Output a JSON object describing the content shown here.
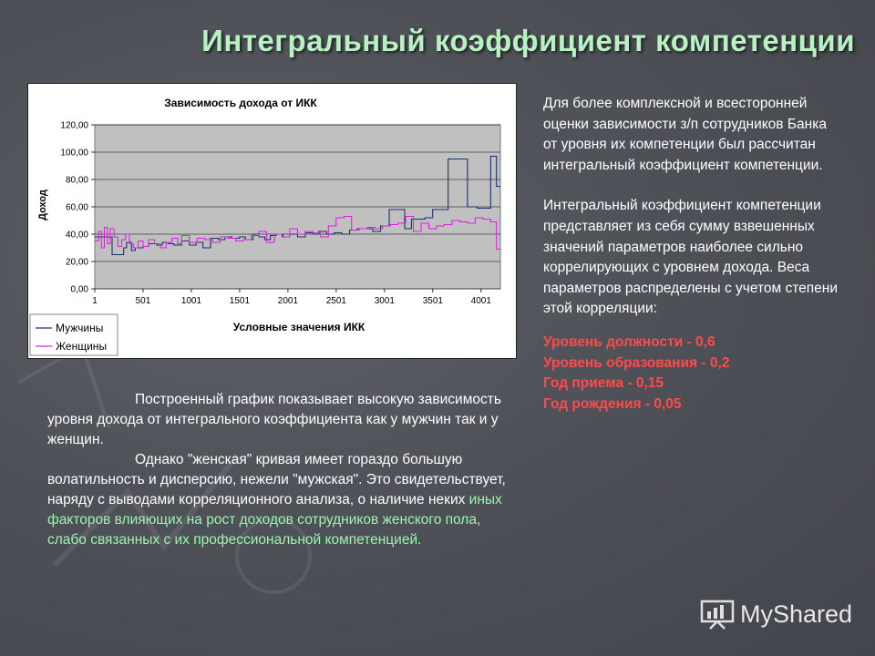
{
  "slide": {
    "title": "Интегральный коэффициент компетенции",
    "brand": "MyShared"
  },
  "right_text": {
    "para1": "Для более комплексной и всесторонней оценки зависимости з/п сотрудников Банка от уровня их компетенции был рассчитан интегральный коэффициент компетенции.",
    "para2": "Интегральный коэффициент компетенции представляет из себя сумму взвешенных значений параметров наиболее сильно коррелирующих с уровнем дохода. Веса параметров распределены с учетом степени этой корреляции:",
    "weights": [
      "Уровень должности - 0,6",
      "Уровень образования - 0,2",
      "Год приема - 0,15",
      "Год рождения - 0,05"
    ]
  },
  "bottom_text": {
    "line1": "Построенный график показывает высокую зависимость уровня дохода от интегрального коэффициента как у мужчин так и у женщин.",
    "line2_lead": "Однако \"женская\" кривая имеет гораздо большую волатильность и дисперсию, нежели \"мужская\". Это свидетельствует, наряду с выводами корреляционного анализа, о наличие неких ",
    "line2_accent": "иных факторов влияющих на рост доходов сотрудников женского пола, слабо связанных с их профессиональной компетенцией."
  },
  "colors": {
    "title": "#b8f2c2",
    "weights": "#ff4a4a",
    "accent_text": "#9bf5b0",
    "men_series": "#1f2f6e",
    "women_series": "#e020e0",
    "plot_bg": "#c0c0c0"
  },
  "chart_data": {
    "type": "line",
    "title": "Зависимость дохода от ИКК",
    "xlabel": "Условные значения ИКК",
    "ylabel": "Доход",
    "x_ticks": [
      "1",
      "501",
      "1001",
      "1501",
      "2001",
      "2501",
      "3001",
      "3501",
      "4001"
    ],
    "y_ticks": [
      "0,00",
      "20,00",
      "40,00",
      "60,00",
      "80,00",
      "100,00",
      "120,00"
    ],
    "xlim": [
      1,
      4201
    ],
    "ylim": [
      0,
      120
    ],
    "grid": true,
    "legend_position": "bottom-left",
    "series": [
      {
        "name": "Мужчины",
        "color": "#1f2f6e",
        "x": [
          1,
          120,
          180,
          230,
          300,
          330,
          380,
          420,
          500,
          560,
          640,
          700,
          760,
          820,
          900,
          980,
          1050,
          1120,
          1200,
          1280,
          1350,
          1420,
          1500,
          1560,
          1640,
          1700,
          1760,
          1820,
          1880,
          1950,
          2020,
          2100,
          2180,
          2260,
          2320,
          2400,
          2480,
          2560,
          2640,
          2720,
          2800,
          2880,
          2960,
          3050,
          3140,
          3210,
          3280,
          3350,
          3420,
          3500,
          3560,
          3660,
          3760,
          3860,
          3960,
          4040,
          4100,
          4160,
          4201
        ],
        "y": [
          38,
          38,
          25,
          25,
          30,
          34,
          28,
          30,
          31,
          33,
          32,
          34,
          33,
          32,
          35,
          32,
          34,
          30,
          37,
          36,
          38,
          37,
          38,
          36,
          40,
          38,
          36,
          39,
          40,
          38,
          40,
          38,
          41,
          40,
          42,
          40,
          41,
          40,
          43,
          44,
          44,
          42,
          46,
          58,
          58,
          44,
          51,
          51,
          52,
          58,
          58,
          95,
          95,
          60,
          59,
          59,
          97,
          75,
          75
        ]
      },
      {
        "name": "Женщины",
        "color": "#e020e0",
        "x": [
          1,
          40,
          70,
          100,
          130,
          160,
          200,
          240,
          280,
          320,
          360,
          400,
          450,
          500,
          560,
          620,
          680,
          740,
          800,
          860,
          900,
          980,
          1060,
          1140,
          1220,
          1300,
          1380,
          1460,
          1540,
          1620,
          1700,
          1780,
          1860,
          1940,
          2020,
          2100,
          2180,
          2260,
          2340,
          2420,
          2500,
          2580,
          2660,
          2740,
          2820,
          2900,
          2980,
          3060,
          3140,
          3220,
          3300,
          3380,
          3460,
          3540,
          3620,
          3700,
          3780,
          3860,
          3940,
          4020,
          4100,
          4160,
          4201
        ],
        "y": [
          35,
          42,
          30,
          45,
          33,
          44,
          38,
          31,
          36,
          40,
          33,
          30,
          35,
          31,
          36,
          33,
          30,
          34,
          37,
          33,
          39,
          34,
          37,
          36,
          34,
          38,
          37,
          35,
          36,
          39,
          42,
          34,
          40,
          38,
          44,
          40,
          42,
          41,
          38,
          46,
          52,
          53,
          43,
          44,
          45,
          44,
          46,
          47,
          48,
          53,
          42,
          48,
          44,
          46,
          47,
          50,
          49,
          48,
          52,
          51,
          49,
          29,
          29
        ]
      }
    ]
  }
}
